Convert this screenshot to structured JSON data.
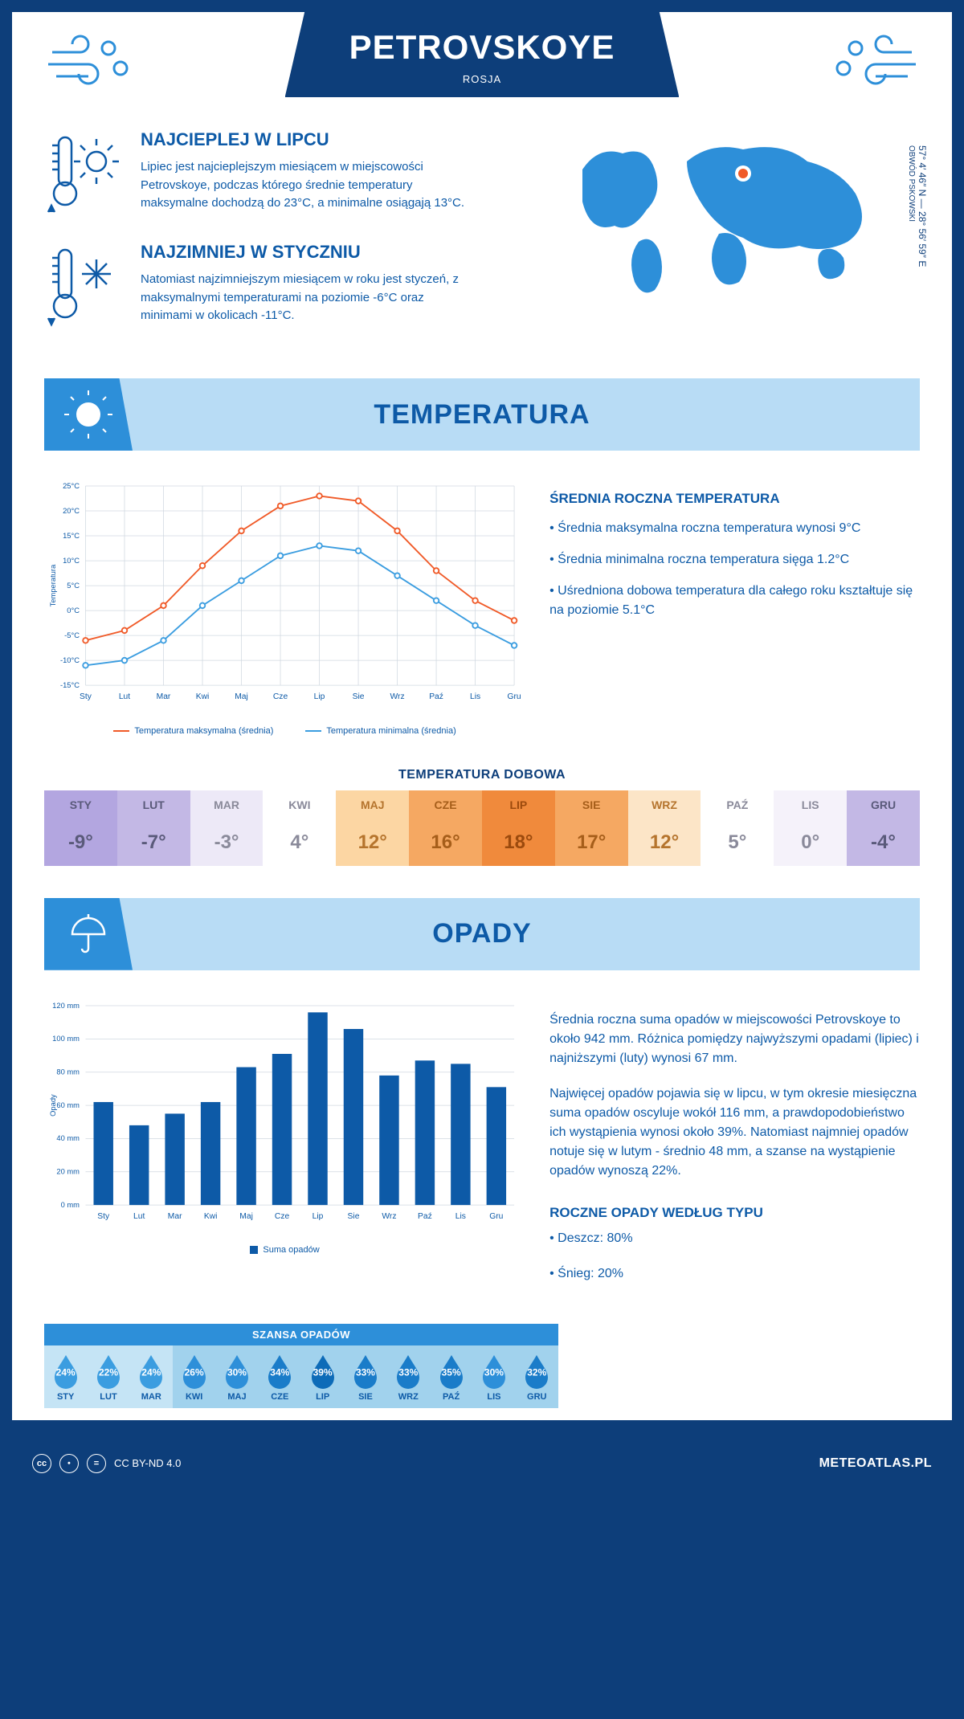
{
  "header": {
    "title": "PETROVSKOYE",
    "country": "ROSJA"
  },
  "colors": {
    "primary": "#0d5aa7",
    "dark": "#0d3e7a",
    "light_blue": "#b8dcf5",
    "mid_blue": "#2d8fd9",
    "line_max": "#f05a28",
    "line_min": "#3b9de0"
  },
  "coords": {
    "lat": "57° 4′ 46″ N",
    "lon": "28° 56′ 59″ E",
    "region": "OBWÓD PSKOWSKI"
  },
  "warm": {
    "title": "NAJCIEPLEJ W LIPCU",
    "text": "Lipiec jest najcieplejszym miesiącem w miejscowości Petrovskoye, podczas którego średnie temperatury maksymalne dochodzą do 23°C, a minimalne osiągają 13°C."
  },
  "cold": {
    "title": "NAJZIMNIEJ W STYCZNIU",
    "text": "Natomiast najzimniejszym miesiącem w roku jest styczeń, z maksymalnymi temperaturami na poziomie -6°C oraz minimami w okolicach -11°C."
  },
  "temp_section": {
    "header": "TEMPERATURA",
    "avg_title": "ŚREDNIA ROCZNA TEMPERATURA",
    "bullet1": "• Średnia maksymalna roczna temperatura wynosi 9°C",
    "bullet2": "• Średnia minimalna roczna temperatura sięga 1.2°C",
    "bullet3": "• Uśredniona dobowa temperatura dla całego roku kształtuje się na poziomie 5.1°C",
    "months": [
      "Sty",
      "Lut",
      "Mar",
      "Kwi",
      "Maj",
      "Cze",
      "Lip",
      "Sie",
      "Wrz",
      "Paź",
      "Lis",
      "Gru"
    ],
    "ylabel": "Temperatura",
    "ymin": -15,
    "ymax": 25,
    "ystep": 5,
    "max_series": [
      -6,
      -4,
      1,
      9,
      16,
      21,
      23,
      22,
      16,
      8,
      2,
      -2
    ],
    "min_series": [
      -11,
      -10,
      -6,
      1,
      6,
      11,
      13,
      12,
      7,
      2,
      -3,
      -7
    ],
    "legend_max": "Temperatura maksymalna (średnia)",
    "legend_min": "Temperatura minimalna (średnia)"
  },
  "daily": {
    "title": "TEMPERATURA DOBOWA",
    "months": [
      "STY",
      "LUT",
      "MAR",
      "KWI",
      "MAJ",
      "CZE",
      "LIP",
      "SIE",
      "WRZ",
      "PAŹ",
      "LIS",
      "GRU"
    ],
    "values": [
      "-9°",
      "-7°",
      "-3°",
      "4°",
      "12°",
      "16°",
      "18°",
      "17°",
      "12°",
      "5°",
      "0°",
      "-4°"
    ],
    "cell_bg": [
      "#b3a6e0",
      "#c3b8e5",
      "#ede9f7",
      "#ffffff",
      "#fcd6a3",
      "#f5a862",
      "#f08a3c",
      "#f5a862",
      "#fce5c7",
      "#ffffff",
      "#f5f2fa",
      "#c3b8e5"
    ],
    "cell_fg": [
      "#5a5a7a",
      "#5a5a7a",
      "#8a8a9a",
      "#8a8a9a",
      "#b5742d",
      "#a65e1a",
      "#9c4a0d",
      "#a65e1a",
      "#b5742d",
      "#8a8a9a",
      "#8a8a9a",
      "#5a5a7a"
    ]
  },
  "precip_section": {
    "header": "OPADY",
    "months": [
      "Sty",
      "Lut",
      "Mar",
      "Kwi",
      "Maj",
      "Cze",
      "Lip",
      "Sie",
      "Wrz",
      "Paź",
      "Lis",
      "Gru"
    ],
    "ylabel": "Opady",
    "ymax": 120,
    "ystep": 20,
    "values": [
      62,
      48,
      55,
      62,
      83,
      91,
      116,
      106,
      78,
      87,
      85,
      71
    ],
    "legend": "Suma opadów",
    "para1": "Średnia roczna suma opadów w miejscowości Petrovskoye to około 942 mm. Różnica pomiędzy najwyższymi opadami (lipiec) i najniższymi (luty) wynosi 67 mm.",
    "para2": "Najwięcej opadów pojawia się w lipcu, w tym okresie miesięczna suma opadów oscyluje wokół 116 mm, a prawdopodobieństwo ich wystąpienia wynosi około 39%. Natomiast najmniej opadów notuje się w lutym - średnio 48 mm, a szanse na wystąpienie opadów wynoszą 22%.",
    "by_type_title": "ROCZNE OPADY WEDŁUG TYPU",
    "by_type_1": "• Deszcz: 80%",
    "by_type_2": "• Śnieg: 20%"
  },
  "chance": {
    "title": "SZANSA OPADÓW",
    "months": [
      "STY",
      "LUT",
      "MAR",
      "KWI",
      "MAJ",
      "CZE",
      "LIP",
      "SIE",
      "WRZ",
      "PAŹ",
      "LIS",
      "GRU"
    ],
    "values": [
      "24%",
      "22%",
      "24%",
      "26%",
      "30%",
      "34%",
      "39%",
      "33%",
      "33%",
      "35%",
      "30%",
      "32%"
    ],
    "cell_bg": [
      "#c5e4f5",
      "#c5e4f5",
      "#c5e4f5",
      "#a1d2ed",
      "#a1d2ed",
      "#a1d2ed",
      "#a1d2ed",
      "#a1d2ed",
      "#a1d2ed",
      "#a1d2ed",
      "#a1d2ed",
      "#a1d2ed"
    ],
    "drop_fill": [
      "#3b9de0",
      "#3b9de0",
      "#3b9de0",
      "#2d8fd9",
      "#2d8fd9",
      "#1a7cc9",
      "#0d6bb8",
      "#1a7cc9",
      "#1a7cc9",
      "#1a7cc9",
      "#2d8fd9",
      "#1a7cc9"
    ]
  },
  "footer": {
    "license": "CC BY-ND 4.0",
    "brand": "METEOATLAS.PL"
  }
}
